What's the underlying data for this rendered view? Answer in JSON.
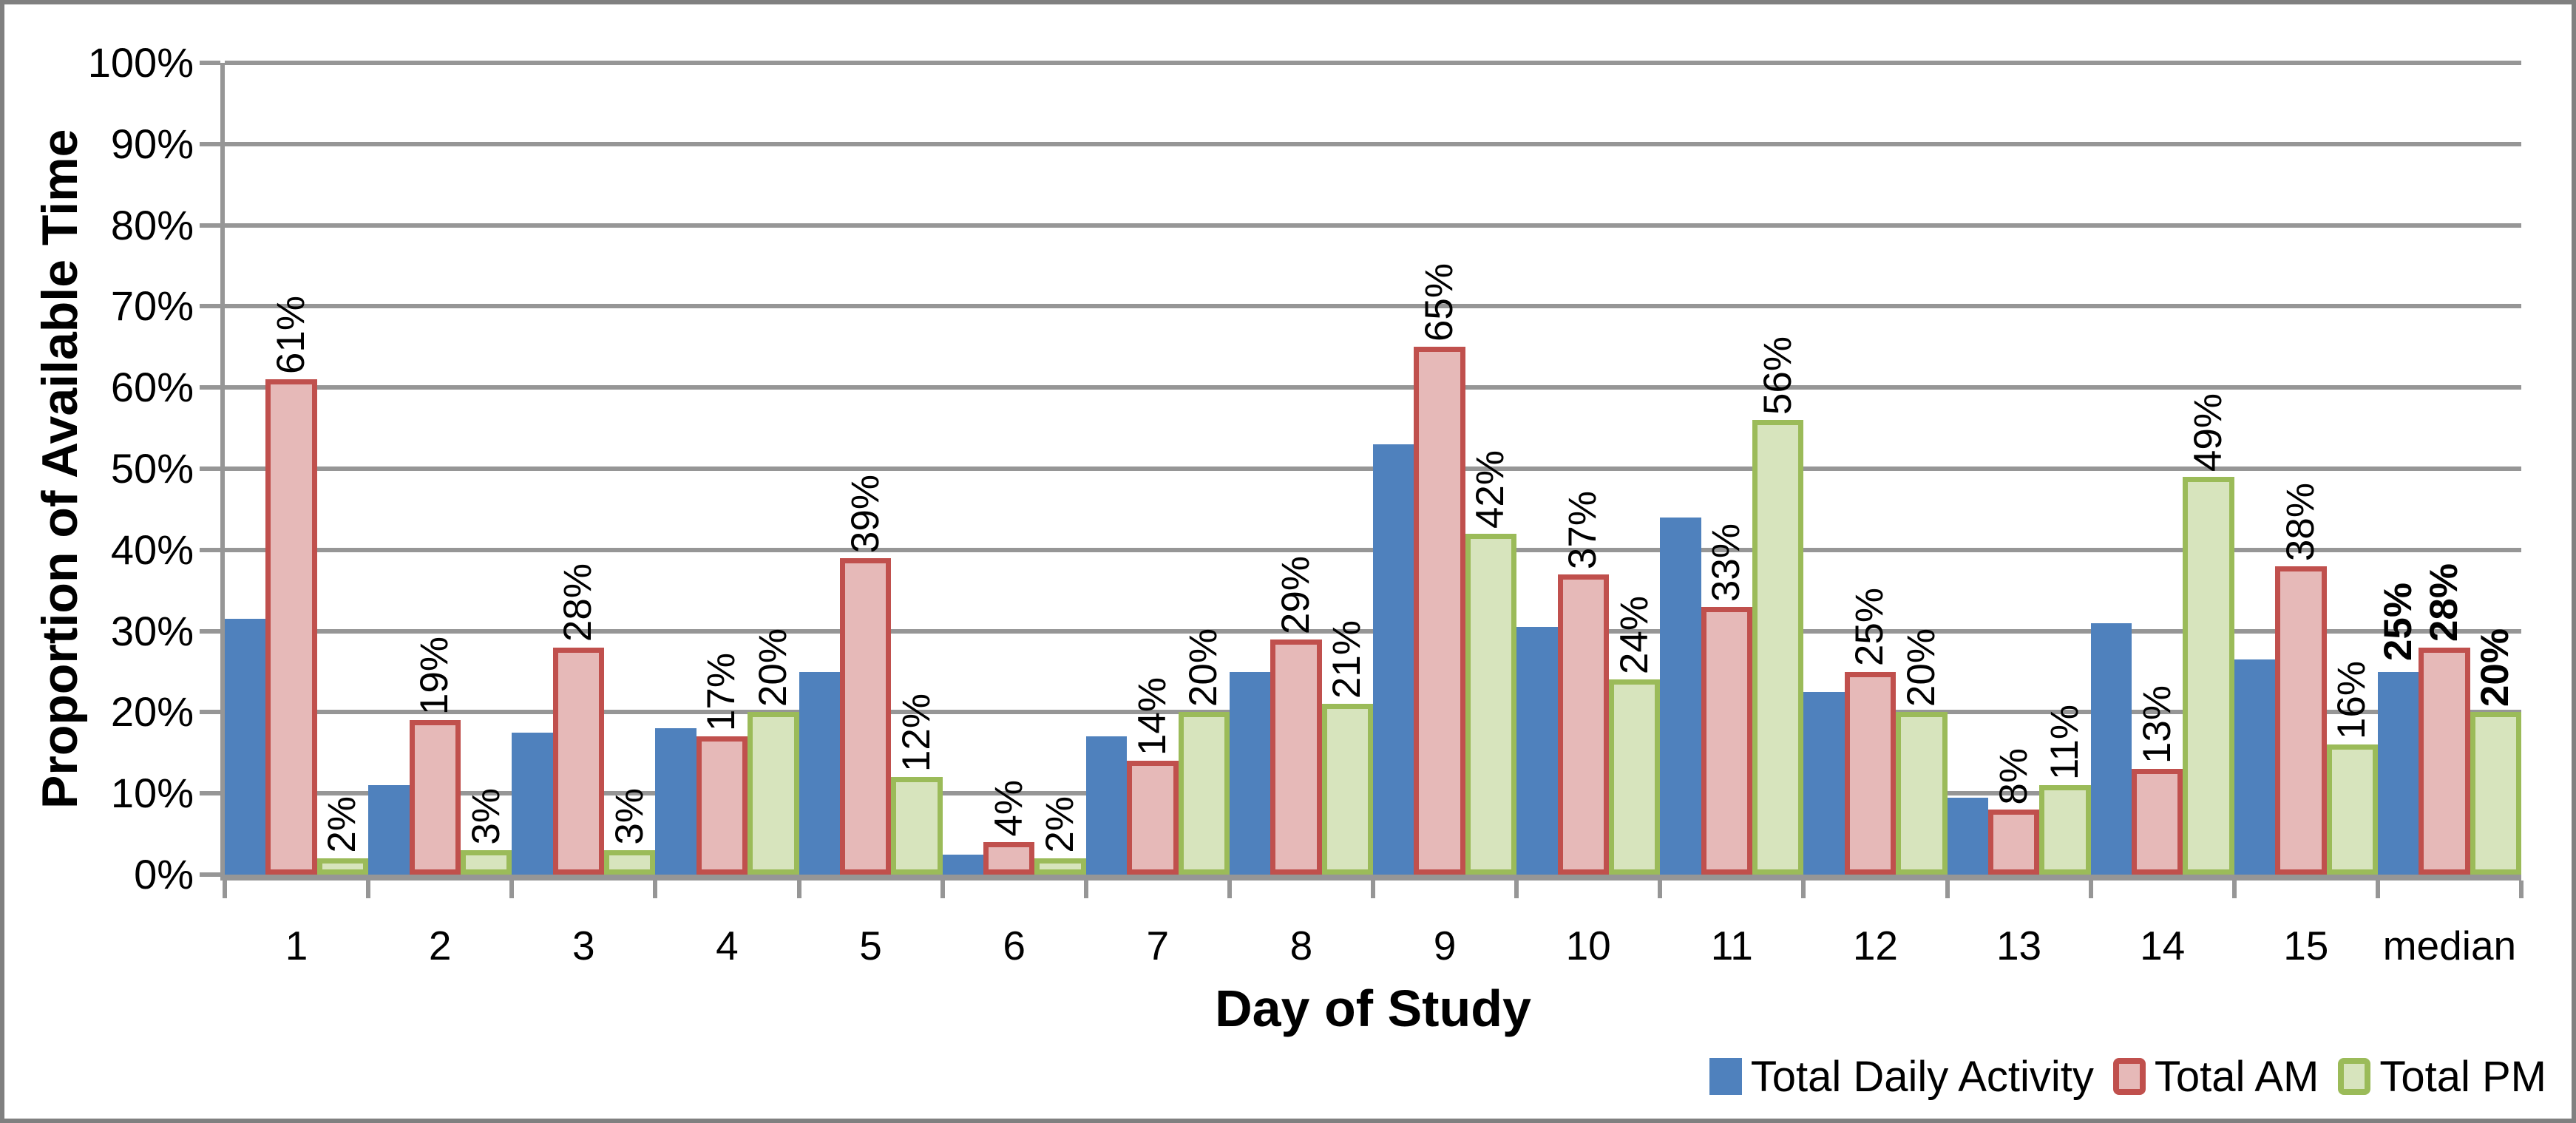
{
  "chart_data": {
    "type": "bar",
    "title": "",
    "xlabel": "Day of Study",
    "ylabel": "Proportion of Available Time",
    "categories": [
      "1",
      "2",
      "3",
      "4",
      "5",
      "6",
      "7",
      "8",
      "9",
      "10",
      "11",
      "12",
      "13",
      "14",
      "15",
      "median"
    ],
    "y_ticks": [
      "0%",
      "10%",
      "20%",
      "30%",
      "40%",
      "50%",
      "60%",
      "70%",
      "80%",
      "90%",
      "100%"
    ],
    "ylim": [
      0,
      100
    ],
    "grid": true,
    "legend_position": "bottom-right",
    "label_bold_category": "median",
    "series": [
      {
        "name": "Total Daily Activity",
        "fill": "#4F81BD",
        "border": "#4F81BD",
        "border_width": 0,
        "values": [
          31.5,
          11,
          17.5,
          18,
          25,
          2.5,
          17,
          25,
          53,
          30.5,
          44,
          22.5,
          9.5,
          31,
          26.5,
          25
        ],
        "labels": [
          null,
          null,
          null,
          null,
          null,
          null,
          null,
          null,
          null,
          null,
          null,
          null,
          null,
          null,
          null,
          "25%"
        ]
      },
      {
        "name": "Total AM",
        "fill": "#E6B9B8",
        "border": "#C0504D",
        "border_width": 7,
        "values": [
          61,
          19,
          28,
          17,
          39,
          4,
          14,
          29,
          65,
          37,
          33,
          25,
          8,
          13,
          38,
          28
        ],
        "labels": [
          "61%",
          "19%",
          "28%",
          "17%",
          "39%",
          "4%",
          "14%",
          "29%",
          "65%",
          "37%",
          "33%",
          "25%",
          "8%",
          "13%",
          "38%",
          "28%"
        ]
      },
      {
        "name": "Total PM",
        "fill": "#D7E4BD",
        "border": "#9BBB59",
        "border_width": 7,
        "values": [
          2,
          3,
          3,
          20,
          12,
          2,
          20,
          21,
          42,
          24,
          56,
          20,
          11,
          49,
          16,
          20
        ],
        "labels": [
          "2%",
          "3%",
          "3%",
          "20%",
          "12%",
          "2%",
          "20%",
          "21%",
          "42%",
          "24%",
          "56%",
          "20%",
          "11%",
          "49%",
          "16%",
          "20%"
        ]
      }
    ],
    "colors": {
      "gridline": "#969696",
      "axis": "#969696",
      "frame": "#808080",
      "background": "#FFFFFF",
      "text": "#000000"
    }
  }
}
